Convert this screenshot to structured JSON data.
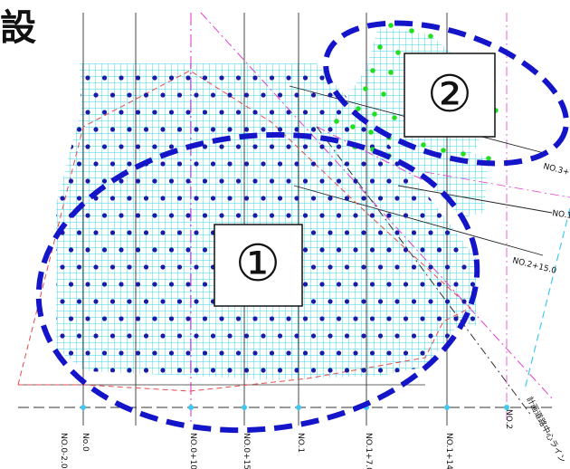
{
  "corner_title": "設",
  "zones": [
    {
      "id": "zone-1",
      "label": "①"
    },
    {
      "id": "zone-2",
      "label": "②"
    }
  ],
  "station_labels": [
    "NO.0-2.0",
    "No.0",
    "NO.0+10.0",
    "NO.0+15.0",
    "NO.1",
    "NO.1+7.0",
    "NO.1+14.0",
    "NO.2"
  ],
  "section_labels": [
    {
      "text": "NO.2+15.0"
    },
    {
      "text": "NO.3+"
    },
    {
      "text": "NO.1"
    }
  ],
  "diagonal_label": "計画道路中心ライン",
  "colors": {
    "grid_hatch": "#33d6e8",
    "blue_dots": "#1a1aa8",
    "green_dots": "#22dd22",
    "ellipse": "#1414c8",
    "boundary_red": "#e84a4a",
    "magenta_line": "#e040d0",
    "cyan_dashed": "#40c8f0"
  }
}
